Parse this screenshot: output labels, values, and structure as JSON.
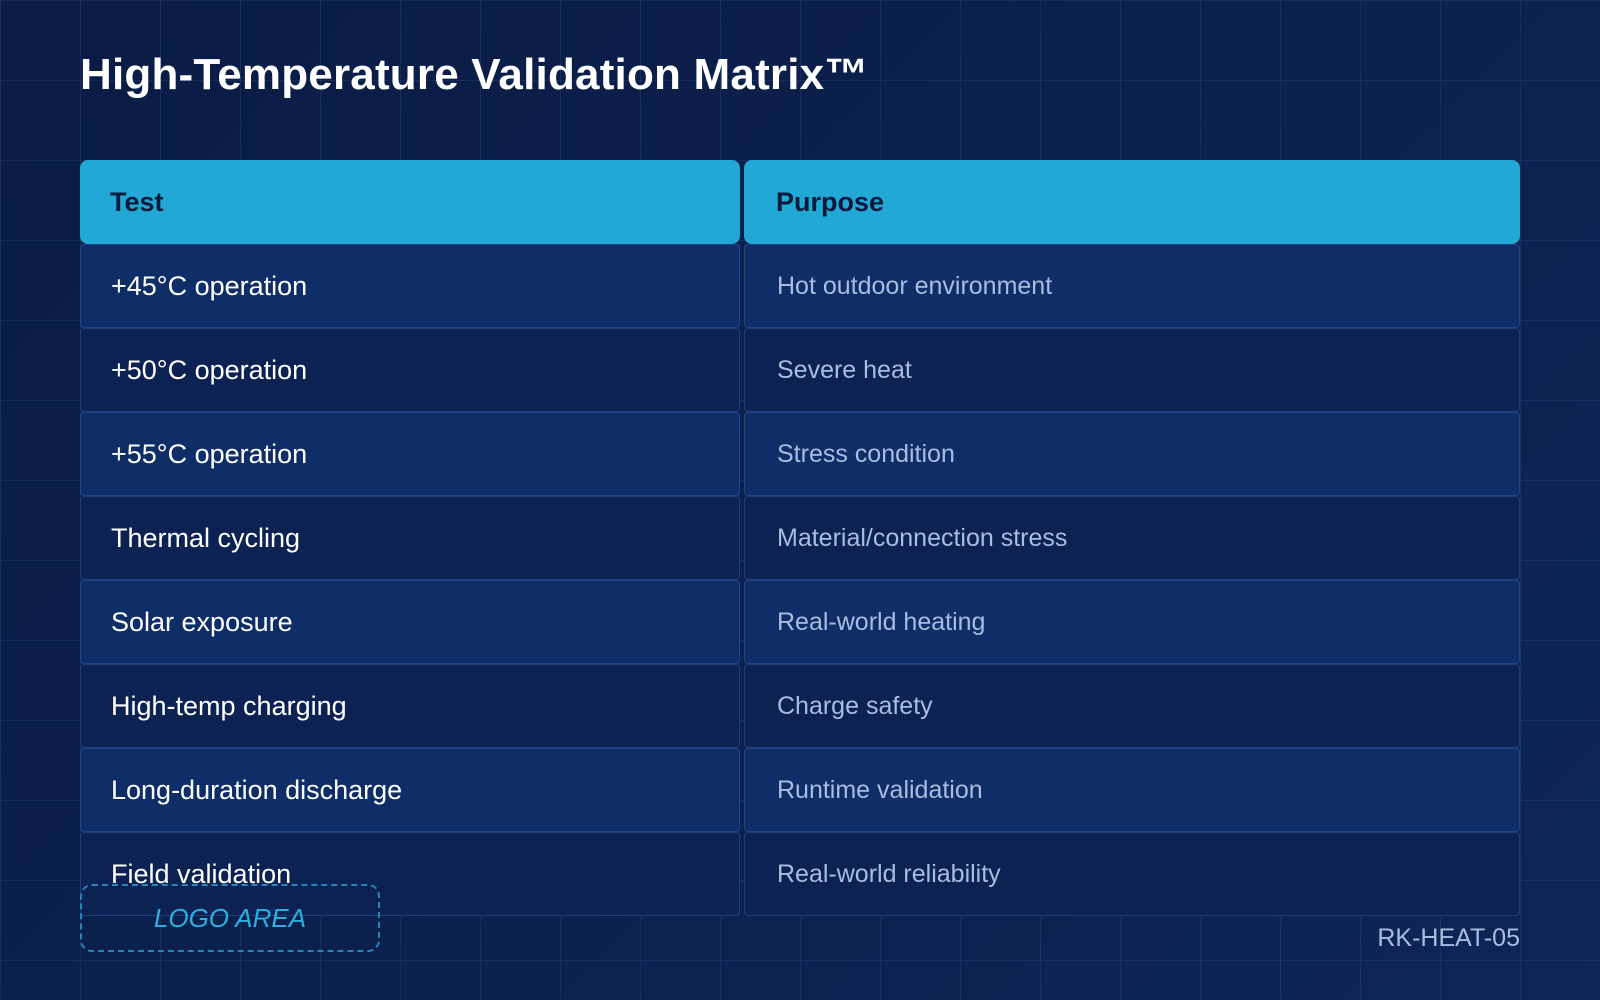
{
  "title": "High-Temperature Validation Matrix™",
  "table": {
    "headers": [
      "Test",
      "Purpose"
    ],
    "rows": [
      {
        "test": "+45°C operation",
        "purpose": "Hot outdoor environment"
      },
      {
        "test": "+50°C operation",
        "purpose": "Severe heat"
      },
      {
        "test": "+55°C operation",
        "purpose": "Stress condition"
      },
      {
        "test": "Thermal cycling",
        "purpose": "Material/connection stress"
      },
      {
        "test": "Solar exposure",
        "purpose": "Real-world heating"
      },
      {
        "test": "High-temp charging",
        "purpose": "Charge safety"
      },
      {
        "test": "Long-duration discharge",
        "purpose": "Runtime validation"
      },
      {
        "test": "Field validation",
        "purpose": "Real-world reliability"
      }
    ]
  },
  "logo_placeholder": "LOGO AREA",
  "doc_code": "RK-HEAT-05",
  "colors": {
    "background": "#0b1f4a",
    "header_accent": "#22a8d4",
    "row_odd": "#0f2d66",
    "row_even": "#0c2253",
    "purpose_text": "#a9bde0"
  }
}
